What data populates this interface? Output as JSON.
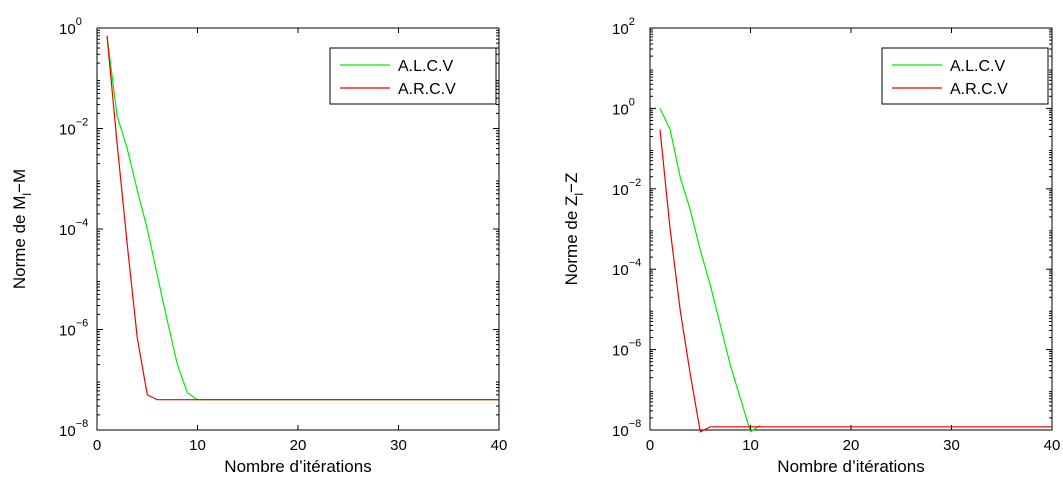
{
  "chart_data": [
    {
      "type": "line",
      "xlabel": "Nombre d’itérations",
      "ylabel": "Norme de M_l−M",
      "ylabel_parts": {
        "prefix": "Norme de M",
        "sub": "l",
        "suffix": "−M"
      },
      "yscale": "log",
      "xlim": [
        0,
        40
      ],
      "ylim": [
        1e-08,
        1
      ],
      "xticks": [
        0,
        10,
        20,
        30,
        40
      ],
      "yticks": [
        {
          "base": "10",
          "exp": "0",
          "value": 1
        },
        {
          "base": "10",
          "exp": "−2",
          "value": 0.01
        },
        {
          "base": "10",
          "exp": "−4",
          "value": 0.0001
        },
        {
          "base": "10",
          "exp": "−6",
          "value": 1e-06
        },
        {
          "base": "10",
          "exp": "−8",
          "value": 1e-08
        }
      ],
      "legend_position": "top-right",
      "series": [
        {
          "name": "A.L.C.V",
          "color": "#00ee00",
          "x": [
            1,
            2,
            3,
            4,
            5,
            6,
            7,
            8,
            9,
            10,
            15,
            20,
            30,
            40
          ],
          "y": [
            0.7,
            0.018,
            0.004,
            0.0006,
            0.0001,
            1.2e-05,
            1.5e-06,
            2e-07,
            5.5e-08,
            4e-08,
            4e-08,
            4e-08,
            4e-08,
            4e-08
          ]
        },
        {
          "name": "A.R.C.V",
          "color": "#ee0000",
          "x": [
            1,
            2,
            3,
            4,
            5,
            6,
            10,
            20,
            30,
            40
          ],
          "y": [
            0.7,
            0.005,
            5e-05,
            7e-07,
            5e-08,
            4e-08,
            4e-08,
            4e-08,
            4e-08,
            4e-08
          ]
        }
      ]
    },
    {
      "type": "line",
      "xlabel": "Nombre d’itérations",
      "ylabel": "Norme de Z_l−Z",
      "ylabel_parts": {
        "prefix": "Norme de Z",
        "sub": "l",
        "suffix": "−Z"
      },
      "yscale": "log",
      "xlim": [
        0,
        40
      ],
      "ylim": [
        1e-08,
        100
      ],
      "xticks": [
        0,
        10,
        20,
        30,
        40
      ],
      "yticks": [
        {
          "base": "10",
          "exp": "2",
          "value": 100
        },
        {
          "base": "10",
          "exp": "0",
          "value": 1
        },
        {
          "base": "10",
          "exp": "−2",
          "value": 0.01
        },
        {
          "base": "10",
          "exp": "−4",
          "value": 0.0001
        },
        {
          "base": "10",
          "exp": "−6",
          "value": 1e-06
        },
        {
          "base": "10",
          "exp": "−8",
          "value": 1e-08
        }
      ],
      "legend_position": "top-right",
      "series": [
        {
          "name": "A.L.C.V",
          "color": "#00ee00",
          "x": [
            1,
            2,
            3,
            4,
            5,
            6,
            7,
            8,
            9,
            10,
            11
          ],
          "y": [
            1.0,
            0.3,
            0.02,
            0.003,
            0.0003,
            4e-05,
            4e-06,
            4e-07,
            6e-08,
            9e-09,
            1.3e-08
          ]
        },
        {
          "name": "A.R.C.V",
          "color": "#ee0000",
          "x": [
            1,
            2,
            3,
            4,
            5,
            6,
            10,
            20,
            30,
            40
          ],
          "y": [
            0.3,
            0.001,
            1e-05,
            2.5e-07,
            9e-09,
            1.2e-08,
            1.2e-08,
            1.2e-08,
            1.2e-08,
            1.2e-08
          ]
        }
      ]
    }
  ]
}
